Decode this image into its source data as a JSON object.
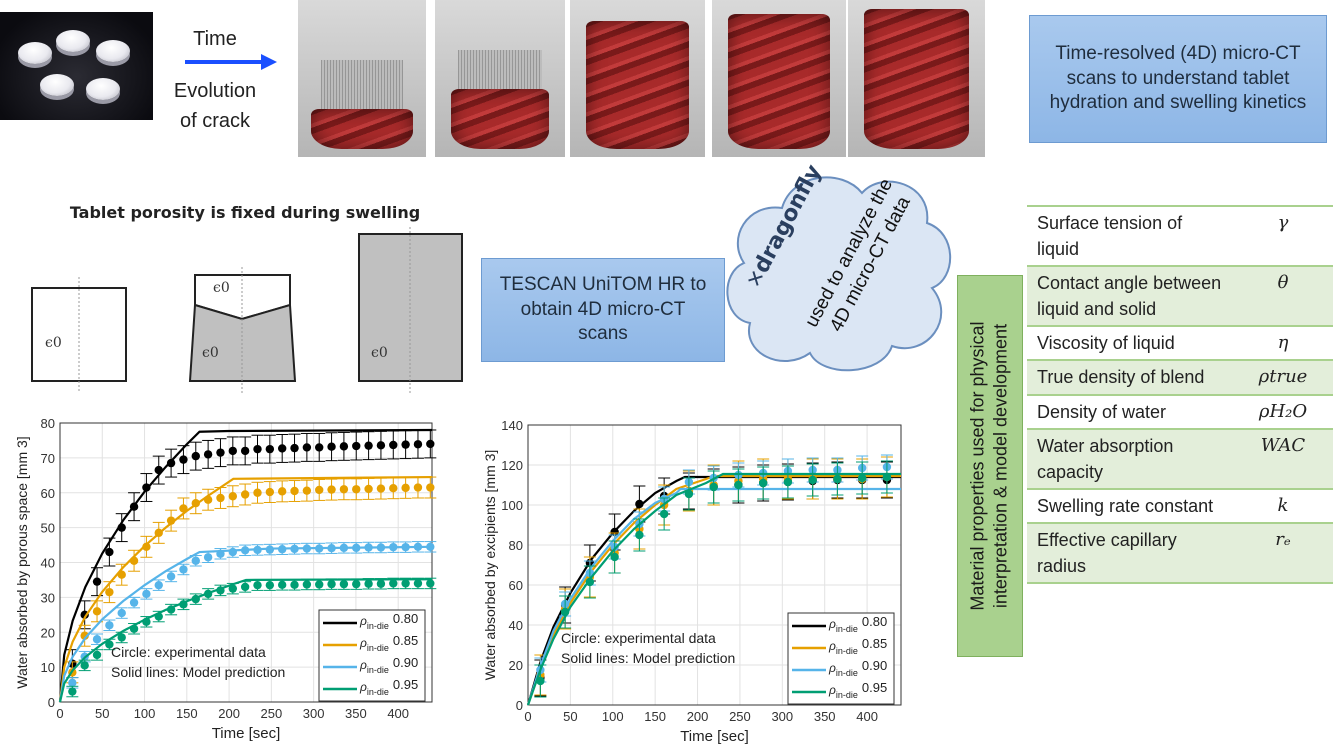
{
  "top": {
    "arrow_top_label": "Time",
    "arrow_bottom_label": "Evolution\nof crack",
    "arrow_color": "#1a4fff",
    "photo": "tablets-photo",
    "ct_scans": [
      "ct-scan-1",
      "ct-scan-2",
      "ct-scan-3",
      "ct-scan-4",
      "ct-scan-5"
    ],
    "info_box": "Time-resolved (4D) micro-CT scans to understand tablet hydration and swelling kinetics"
  },
  "porosity": {
    "title": "Tablet porosity is fixed during swelling",
    "symbol": "ϵ0"
  },
  "tescan_box": "TESCAN UniTOM HR to obtain 4D micro-CT scans",
  "cloud": {
    "logo_text": "dragonfly",
    "text": "used to analyze the 4D micro-CT data"
  },
  "vertical_label": "Material properties used for physical interpretation & model development",
  "properties": [
    {
      "name": "Surface tension of liquid",
      "symbol": "γ"
    },
    {
      "name": "Contact angle between liquid and solid",
      "symbol": "θ"
    },
    {
      "name": "Viscosity of liquid",
      "symbol": "η"
    },
    {
      "name": "True density of blend",
      "symbol": "ρtrue"
    },
    {
      "name": "Density of water",
      "symbol": "ρH₂O"
    },
    {
      "name": "Water absorption capacity",
      "symbol": "WAC"
    },
    {
      "name": "Swelling rate constant",
      "symbol": "k"
    },
    {
      "name": "Effective capillary radius",
      "symbol": "rₑ"
    }
  ],
  "chart_data": [
    {
      "type": "line",
      "xlabel": "Time [sec]",
      "ylabel": "Water absorbed by porous space [mm 3]",
      "xlim": [
        0,
        440
      ],
      "ylim": [
        0,
        80
      ],
      "xticks": [
        0,
        50,
        100,
        150,
        200,
        250,
        300,
        350,
        400
      ],
      "yticks": [
        0,
        10,
        20,
        30,
        40,
        50,
        60,
        70,
        80
      ],
      "grid": true,
      "legend_position": "bottom-right",
      "annotations": [
        "Circle: experimental data",
        "Solid lines: Model prediction"
      ],
      "x": [
        14.6,
        29.2,
        43.8,
        58.4,
        73,
        87.6,
        102.2,
        116.8,
        131.4,
        146,
        160.6,
        175.2,
        189.8,
        204.4,
        219,
        233.6,
        248.2,
        262.8,
        277.4,
        292,
        306.6,
        321.2,
        335.8,
        350.4,
        365,
        379.6,
        394.2,
        408.8,
        423.4,
        438
      ],
      "series": [
        {
          "name": "ρin-die 0.80",
          "color": "#000000",
          "error": 4,
          "values": [
            11,
            25,
            34.5,
            43,
            50,
            56,
            61.5,
            66.5,
            68.5,
            69.5,
            70.5,
            71,
            71.5,
            72,
            72,
            72.5,
            72.5,
            72.7,
            72.8,
            73,
            73,
            73.2,
            73.3,
            73.4,
            73.5,
            73.6,
            73.7,
            73.8,
            73.9,
            74
          ],
          "model": [
            [
              0,
              0
            ],
            [
              5,
              13.5
            ],
            [
              15,
              23.3
            ],
            [
              30,
              33
            ],
            [
              50,
              42.6
            ],
            [
              75,
              52.2
            ],
            [
              100,
              60.3
            ],
            [
              125,
              67.4
            ],
            [
              150,
              73.9
            ],
            [
              165,
              77.5
            ],
            [
              200,
              77.7
            ],
            [
              440,
              78
            ]
          ]
        },
        {
          "name": "ρin-die 0.85",
          "color": "#e6a000",
          "error": 3,
          "values": [
            8.5,
            19,
            26,
            31.5,
            36.5,
            40.5,
            44.5,
            48.5,
            52,
            55.5,
            57,
            58,
            58.5,
            59,
            59.5,
            60,
            60.2,
            60.4,
            60.5,
            60.6,
            60.8,
            60.9,
            61,
            61,
            61.1,
            61.2,
            61.3,
            61.4,
            61.5,
            61.5
          ],
          "model": [
            [
              0,
              0
            ],
            [
              5,
              10
            ],
            [
              15,
              17.3
            ],
            [
              30,
              24.5
            ],
            [
              50,
              31.6
            ],
            [
              75,
              38.7
            ],
            [
              100,
              44.7
            ],
            [
              125,
              50
            ],
            [
              150,
              54.8
            ],
            [
              175,
              59.1
            ],
            [
              205,
              64
            ],
            [
              440,
              64.5
            ]
          ]
        },
        {
          "name": "ρin-die 0.90",
          "color": "#56b4e9",
          "error": 1.5,
          "values": [
            5.5,
            13,
            18,
            22,
            25.5,
            28.5,
            31,
            33.5,
            36,
            38,
            40.5,
            41.5,
            42.5,
            43,
            43.5,
            43.6,
            43.7,
            43.8,
            43.9,
            44,
            44,
            44.1,
            44.2,
            44.2,
            44.3,
            44.3,
            44.4,
            44.4,
            44.5,
            44.5
          ],
          "model": [
            [
              0,
              0
            ],
            [
              5,
              7.5
            ],
            [
              15,
              13
            ],
            [
              30,
              18.4
            ],
            [
              50,
              23.7
            ],
            [
              75,
              29
            ],
            [
              100,
              33.5
            ],
            [
              125,
              37.5
            ],
            [
              150,
              41
            ],
            [
              165,
              43
            ],
            [
              250,
              44
            ],
            [
              440,
              44.5
            ]
          ]
        },
        {
          "name": "ρin-die 0.95",
          "color": "#009e73",
          "error": 1.5,
          "values": [
            3,
            10.5,
            13.5,
            16.5,
            18.5,
            21,
            23,
            24.5,
            26.5,
            28,
            29.5,
            31,
            32,
            32.5,
            33,
            33.5,
            33.5,
            33.6,
            33.6,
            33.7,
            33.7,
            33.8,
            33.8,
            33.8,
            33.9,
            33.9,
            34,
            34,
            34,
            34
          ],
          "model": [
            [
              0,
              0
            ],
            [
              5,
              5.3
            ],
            [
              15,
              9.1
            ],
            [
              30,
              12.9
            ],
            [
              50,
              16.7
            ],
            [
              75,
              20.4
            ],
            [
              100,
              23.6
            ],
            [
              125,
              26.4
            ],
            [
              150,
              28.9
            ],
            [
              175,
              31.2
            ],
            [
              205,
              33.8
            ],
            [
              220,
              35
            ],
            [
              440,
              35.2
            ]
          ]
        }
      ]
    },
    {
      "type": "line",
      "xlabel": "Time [sec]",
      "ylabel": "Water absorbed by excipients [mm 3]",
      "xlim": [
        0,
        440
      ],
      "ylim": [
        0,
        140
      ],
      "xticks": [
        0,
        50,
        100,
        150,
        200,
        250,
        300,
        350,
        400
      ],
      "yticks": [
        0,
        20,
        40,
        60,
        80,
        100,
        120,
        140
      ],
      "grid": true,
      "legend_position": "bottom-right",
      "annotations": [
        "Circle: experimental data",
        "Solid lines: Model prediction"
      ],
      "x": [
        14.6,
        43.8,
        73,
        102.2,
        131.4,
        160.6,
        189.8,
        219,
        248.2,
        277.4,
        306.6,
        335.8,
        365,
        394.2,
        423.4
      ],
      "series": [
        {
          "name": "ρin-die 0.80",
          "color": "#000000",
          "error": 9,
          "values": [
            13.5,
            50,
            71,
            86.5,
            100.5,
            104.5,
            107,
            109,
            110,
            111,
            111.5,
            112,
            112.5,
            112.5,
            112.5
          ],
          "model": [
            [
              0,
              0
            ],
            [
              15,
              22
            ],
            [
              30,
              39
            ],
            [
              50,
              56
            ],
            [
              75,
              73
            ],
            [
              100,
              86
            ],
            [
              125,
              97
            ],
            [
              150,
              106
            ],
            [
              175,
              112
            ],
            [
              185,
              114
            ],
            [
              440,
              114
            ]
          ]
        },
        {
          "name": "ρin-die 0.85",
          "color": "#e6a000",
          "error": 10,
          "values": [
            15,
            48,
            64,
            76,
            88,
            100,
            107,
            110,
            112,
            113,
            113,
            113,
            113,
            113,
            114
          ],
          "model": [
            [
              0,
              0
            ],
            [
              15,
              19
            ],
            [
              30,
              35
            ],
            [
              50,
              51
            ],
            [
              75,
              67
            ],
            [
              100,
              80
            ],
            [
              125,
              91
            ],
            [
              150,
              100
            ],
            [
              175,
              108
            ],
            [
              210,
              113
            ],
            [
              220,
              114.5
            ],
            [
              440,
              114.5
            ]
          ]
        },
        {
          "name": "ρin-die 0.90",
          "color": "#56b4e9",
          "error": 6,
          "values": [
            17.5,
            50.5,
            66,
            79,
            90.5,
            103,
            111.5,
            113.5,
            115,
            116,
            117,
            117.5,
            117.5,
            118.5,
            119
          ],
          "model": [
            [
              0,
              0
            ],
            [
              15,
              20
            ],
            [
              30,
              37
            ],
            [
              50,
              53
            ],
            [
              75,
              69
            ],
            [
              100,
              82
            ],
            [
              125,
              93
            ],
            [
              150,
              101
            ],
            [
              175,
              106
            ],
            [
              180,
              108
            ],
            [
              440,
              108
            ]
          ]
        },
        {
          "name": "ρin-die 0.95",
          "color": "#009e73",
          "error": 8,
          "values": [
            12,
            46.5,
            61.5,
            74,
            85,
            95.5,
            105.5,
            109,
            110,
            111,
            111.5,
            112.5,
            113,
            113.5,
            114
          ],
          "model": [
            [
              0,
              0
            ],
            [
              15,
              18
            ],
            [
              30,
              33
            ],
            [
              50,
              49
            ],
            [
              75,
              64
            ],
            [
              100,
              77
            ],
            [
              125,
              88
            ],
            [
              150,
              97
            ],
            [
              175,
              105
            ],
            [
              210,
              111
            ],
            [
              230,
              115.5
            ],
            [
              440,
              115.5
            ]
          ]
        }
      ]
    }
  ]
}
